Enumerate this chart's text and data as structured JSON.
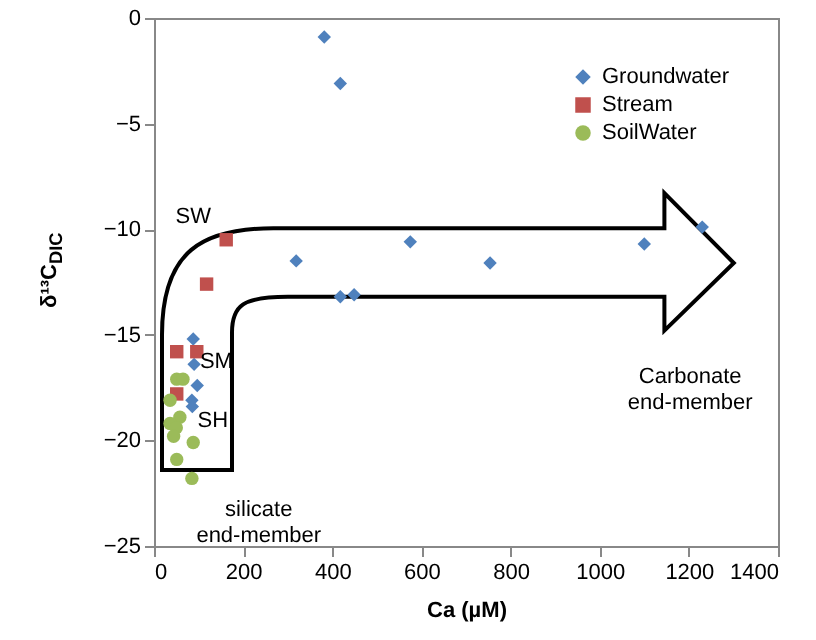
{
  "chart_data": {
    "type": "scatter",
    "xlabel": "Ca (µM)",
    "ylabel": "δ¹³C$_{DIC}$",
    "xlim": [
      0,
      1400
    ],
    "xticks": [
      0,
      200,
      400,
      600,
      800,
      1000,
      1200,
      1400
    ],
    "ylim": [
      -25,
      0
    ],
    "yticks": [
      -25,
      -20,
      -15,
      -10,
      -5,
      0
    ],
    "grid": false,
    "legend": "top right",
    "series": [
      {
        "name": "Groundwater",
        "color": "#4f81bd",
        "marker": "diamond",
        "x": [
          382,
          418,
          319,
          575,
          754,
          1100,
          1230,
          418,
          449,
          88,
          90,
          97,
          85,
          86
        ],
        "values": [
          -0.9,
          -3.1,
          -11.5,
          -10.6,
          -11.6,
          -10.7,
          -9.9,
          -13.2,
          -13.1,
          -15.2,
          -16.4,
          -17.4,
          -18.1,
          -18.4
        ]
      },
      {
        "name": "Stream",
        "color": "#c0504d",
        "marker": "square",
        "x": [
          162,
          118,
          51,
          96,
          51
        ],
        "values": [
          -10.5,
          -12.6,
          -15.8,
          -15.8,
          -17.8
        ]
      },
      {
        "name": "SoilWater",
        "color": "#9bbb59",
        "marker": "circle",
        "x": [
          51,
          65,
          36,
          58,
          36,
          50,
          44,
          88,
          51,
          85
        ],
        "values": [
          -17.1,
          -17.1,
          -18.1,
          -18.9,
          -19.2,
          -19.4,
          -19.8,
          -20.1,
          -20.9,
          -21.8
        ]
      }
    ],
    "annotations": [
      "SW",
      "SM",
      "SH",
      "silicate\nend-member",
      "Carbonate\nend-member"
    ]
  }
}
